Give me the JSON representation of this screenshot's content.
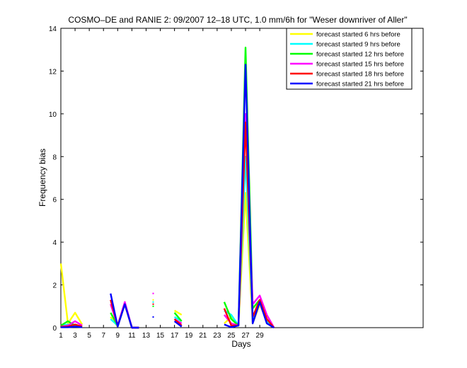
{
  "chart_data": {
    "type": "line",
    "title": "COSMO–DE and RANIE 2: 09/2007 12–18 UTC, 1.0 mm/6h for \"Weser downriver of Aller\"",
    "xlabel": "Days",
    "ylabel": "Frequency bias",
    "xlim": [
      1,
      52
    ],
    "ylim": [
      0,
      14
    ],
    "x_ticks": [
      1,
      3,
      5,
      7,
      9,
      11,
      13,
      15,
      17,
      19,
      21,
      23,
      25,
      27,
      29
    ],
    "y_ticks": [
      0,
      2,
      4,
      6,
      8,
      10,
      12,
      14
    ],
    "grid": false,
    "legend_position": "top-right",
    "series": [
      {
        "name": "forecast started 6 hrs before",
        "color": "#ffff00",
        "x": [
          1,
          2,
          3,
          4,
          8,
          9,
          10,
          11,
          12,
          14,
          17,
          18,
          24,
          25,
          26,
          27,
          28,
          29,
          30,
          31
        ],
        "y": [
          3.0,
          0.2,
          0.7,
          0.15,
          0.5,
          0.05,
          1.1,
          0,
          0,
          1.3,
          0.8,
          0.6,
          0.2,
          0.5,
          0.1,
          6.3,
          0.2,
          1.1,
          0.3,
          0
        ],
        "segments": [
          [
            0,
            4
          ],
          [
            4,
            9
          ],
          [
            9,
            10
          ],
          [
            10,
            12
          ],
          [
            12,
            20
          ]
        ]
      },
      {
        "name": "forecast started 9 hrs before",
        "color": "#00ffff",
        "x": [
          1,
          2,
          3,
          4,
          8,
          9,
          10,
          11,
          12,
          14,
          17,
          18,
          24,
          25,
          26,
          27,
          28,
          29,
          30,
          31
        ],
        "y": [
          0.1,
          0.15,
          0.1,
          0.05,
          0.4,
          0.1,
          1.1,
          0,
          0,
          1.2,
          0.5,
          0.3,
          0.8,
          0.6,
          0.1,
          8.0,
          0.4,
          1.2,
          0.3,
          0
        ],
        "segments": [
          [
            0,
            4
          ],
          [
            4,
            9
          ],
          [
            9,
            10
          ],
          [
            10,
            12
          ],
          [
            12,
            20
          ]
        ]
      },
      {
        "name": "forecast started 12 hrs before",
        "color": "#00ff00",
        "x": [
          1,
          2,
          3,
          4,
          8,
          9,
          10,
          11,
          12,
          14,
          17,
          18,
          24,
          25,
          26,
          27,
          28,
          29,
          30,
          31
        ],
        "y": [
          0.1,
          0.3,
          0.1,
          0.05,
          0.7,
          0.1,
          1.1,
          0,
          0,
          1.0,
          0.7,
          0.3,
          1.2,
          0.4,
          0.1,
          13.1,
          0.9,
          1.3,
          0.4,
          0
        ],
        "segments": [
          [
            0,
            4
          ],
          [
            4,
            9
          ],
          [
            9,
            10
          ],
          [
            10,
            12
          ],
          [
            12,
            20
          ]
        ]
      },
      {
        "name": "forecast started 15 hrs before",
        "color": "#ff00ff",
        "x": [
          1,
          2,
          3,
          4,
          8,
          9,
          10,
          11,
          12,
          14,
          17,
          18,
          24,
          25,
          26,
          27,
          28,
          29,
          30,
          31
        ],
        "y": [
          0.05,
          0.1,
          0.3,
          0.1,
          1.1,
          0.1,
          1.2,
          0,
          0,
          1.6,
          0.4,
          0.2,
          0.6,
          0.2,
          0.1,
          10.0,
          1.1,
          1.5,
          0.6,
          0
        ],
        "segments": [
          [
            0,
            4
          ],
          [
            4,
            9
          ],
          [
            9,
            10
          ],
          [
            10,
            12
          ],
          [
            12,
            20
          ]
        ]
      },
      {
        "name": "forecast started 18 hrs before",
        "color": "#ff0000",
        "x": [
          1,
          2,
          3,
          4,
          8,
          9,
          10,
          11,
          12,
          14,
          17,
          18,
          24,
          25,
          26,
          27,
          28,
          29,
          30,
          31
        ],
        "y": [
          0.05,
          0.05,
          0.15,
          0.05,
          1.3,
          0.1,
          1.1,
          0,
          0,
          1.1,
          0.4,
          0.1,
          0.9,
          0.1,
          0.1,
          9.6,
          0.5,
          1.3,
          0.4,
          0
        ],
        "segments": [
          [
            0,
            4
          ],
          [
            4,
            9
          ],
          [
            9,
            10
          ],
          [
            10,
            12
          ],
          [
            12,
            20
          ]
        ]
      },
      {
        "name": "forecast started 21 hrs before",
        "color": "#0000ff",
        "x": [
          1,
          2,
          3,
          4,
          8,
          9,
          10,
          11,
          12,
          14,
          17,
          18,
          24,
          25,
          26,
          27,
          28,
          29,
          30,
          31
        ],
        "y": [
          0.02,
          0.02,
          0.05,
          0.02,
          1.6,
          0.05,
          1.1,
          0,
          0,
          0.5,
          0.3,
          0.05,
          0.15,
          0.02,
          0.1,
          12.3,
          0.2,
          1.2,
          0.2,
          0
        ],
        "segments": [
          [
            0,
            4
          ],
          [
            4,
            9
          ],
          [
            9,
            10
          ],
          [
            10,
            12
          ],
          [
            12,
            20
          ]
        ]
      }
    ]
  }
}
